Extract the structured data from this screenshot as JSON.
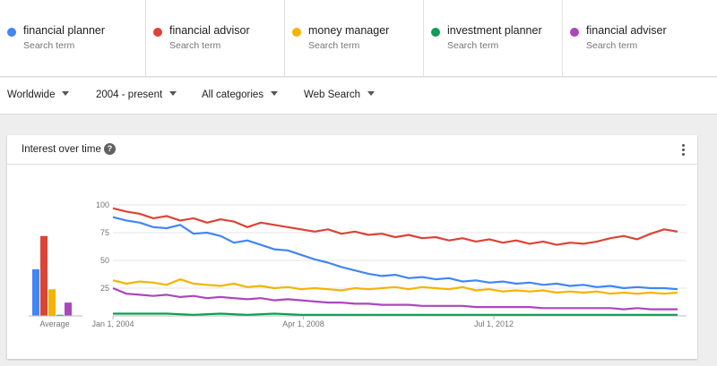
{
  "terms": [
    {
      "name": "financial planner",
      "sub": "Search term",
      "color": "#4285f4"
    },
    {
      "name": "financial advisor",
      "sub": "Search term",
      "color": "#db4437"
    },
    {
      "name": "money manager",
      "sub": "Search term",
      "color": "#f4b400"
    },
    {
      "name": "investment planner",
      "sub": "Search term",
      "color": "#0f9d58"
    },
    {
      "name": "financial adviser",
      "sub": "Search term",
      "color": "#ab47bc"
    }
  ],
  "filters": {
    "region": "Worldwide",
    "time": "2004 - present",
    "category": "All categories",
    "property": "Web Search"
  },
  "card": {
    "title": "Interest over time",
    "help_icon": "?"
  },
  "chart_data": {
    "type": "line",
    "ylim": [
      0,
      100
    ],
    "yticks": [
      "100",
      "75",
      "50",
      "25"
    ],
    "xticks": [
      "Jan 1, 2004",
      "Apr 1, 2008",
      "Jul 1, 2012"
    ],
    "average_label": "Average",
    "averages": [
      {
        "color": "#4285f4",
        "value": 42
      },
      {
        "color": "#db4437",
        "value": 72
      },
      {
        "color": "#f4b400",
        "value": 24
      },
      {
        "color": "#0f9d58",
        "value": 1
      },
      {
        "color": "#ab47bc",
        "value": 12
      }
    ],
    "x_range": [
      "2004-01",
      "2016-10"
    ],
    "series": [
      {
        "color": "#4285f4",
        "values": [
          [
            2004.0,
            89
          ],
          [
            2004.3,
            86
          ],
          [
            2004.6,
            84
          ],
          [
            2004.9,
            80
          ],
          [
            2005.2,
            79
          ],
          [
            2005.5,
            82
          ],
          [
            2005.8,
            74
          ],
          [
            2006.1,
            75
          ],
          [
            2006.4,
            72
          ],
          [
            2006.7,
            66
          ],
          [
            2007.0,
            68
          ],
          [
            2007.3,
            64
          ],
          [
            2007.6,
            60
          ],
          [
            2007.9,
            59
          ],
          [
            2008.2,
            55
          ],
          [
            2008.5,
            51
          ],
          [
            2008.8,
            48
          ],
          [
            2009.1,
            44
          ],
          [
            2009.4,
            41
          ],
          [
            2009.7,
            38
          ],
          [
            2010.0,
            36
          ],
          [
            2010.3,
            37
          ],
          [
            2010.6,
            34
          ],
          [
            2010.9,
            35
          ],
          [
            2011.2,
            33
          ],
          [
            2011.5,
            34
          ],
          [
            2011.8,
            31
          ],
          [
            2012.1,
            32
          ],
          [
            2012.4,
            30
          ],
          [
            2012.7,
            31
          ],
          [
            2013.0,
            29
          ],
          [
            2013.3,
            30
          ],
          [
            2013.6,
            28
          ],
          [
            2013.9,
            29
          ],
          [
            2014.2,
            27
          ],
          [
            2014.5,
            28
          ],
          [
            2014.8,
            26
          ],
          [
            2015.1,
            27
          ],
          [
            2015.4,
            25
          ],
          [
            2015.7,
            26
          ],
          [
            2016.0,
            25
          ],
          [
            2016.3,
            25
          ],
          [
            2016.6,
            24
          ]
        ]
      },
      {
        "color": "#db4437",
        "values": [
          [
            2004.0,
            97
          ],
          [
            2004.3,
            94
          ],
          [
            2004.6,
            92
          ],
          [
            2004.9,
            88
          ],
          [
            2005.2,
            90
          ],
          [
            2005.5,
            86
          ],
          [
            2005.8,
            88
          ],
          [
            2006.1,
            84
          ],
          [
            2006.4,
            87
          ],
          [
            2006.7,
            85
          ],
          [
            2007.0,
            80
          ],
          [
            2007.3,
            84
          ],
          [
            2007.6,
            82
          ],
          [
            2007.9,
            80
          ],
          [
            2008.2,
            78
          ],
          [
            2008.5,
            76
          ],
          [
            2008.8,
            78
          ],
          [
            2009.1,
            74
          ],
          [
            2009.4,
            76
          ],
          [
            2009.7,
            73
          ],
          [
            2010.0,
            74
          ],
          [
            2010.3,
            71
          ],
          [
            2010.6,
            73
          ],
          [
            2010.9,
            70
          ],
          [
            2011.2,
            71
          ],
          [
            2011.5,
            68
          ],
          [
            2011.8,
            70
          ],
          [
            2012.1,
            67
          ],
          [
            2012.4,
            69
          ],
          [
            2012.7,
            66
          ],
          [
            2013.0,
            68
          ],
          [
            2013.3,
            65
          ],
          [
            2013.6,
            67
          ],
          [
            2013.9,
            64
          ],
          [
            2014.2,
            66
          ],
          [
            2014.5,
            65
          ],
          [
            2014.8,
            67
          ],
          [
            2015.1,
            70
          ],
          [
            2015.4,
            72
          ],
          [
            2015.7,
            69
          ],
          [
            2016.0,
            74
          ],
          [
            2016.3,
            78
          ],
          [
            2016.6,
            76
          ]
        ]
      },
      {
        "color": "#f4b400",
        "values": [
          [
            2004.0,
            32
          ],
          [
            2004.3,
            29
          ],
          [
            2004.6,
            31
          ],
          [
            2004.9,
            30
          ],
          [
            2005.2,
            28
          ],
          [
            2005.5,
            33
          ],
          [
            2005.8,
            29
          ],
          [
            2006.1,
            28
          ],
          [
            2006.4,
            27
          ],
          [
            2006.7,
            29
          ],
          [
            2007.0,
            26
          ],
          [
            2007.3,
            27
          ],
          [
            2007.6,
            25
          ],
          [
            2007.9,
            26
          ],
          [
            2008.2,
            24
          ],
          [
            2008.5,
            25
          ],
          [
            2008.8,
            24
          ],
          [
            2009.1,
            23
          ],
          [
            2009.4,
            25
          ],
          [
            2009.7,
            24
          ],
          [
            2010.0,
            25
          ],
          [
            2010.3,
            26
          ],
          [
            2010.6,
            24
          ],
          [
            2010.9,
            26
          ],
          [
            2011.2,
            25
          ],
          [
            2011.5,
            24
          ],
          [
            2011.8,
            26
          ],
          [
            2012.1,
            23
          ],
          [
            2012.4,
            24
          ],
          [
            2012.7,
            22
          ],
          [
            2013.0,
            23
          ],
          [
            2013.3,
            22
          ],
          [
            2013.6,
            23
          ],
          [
            2013.9,
            21
          ],
          [
            2014.2,
            22
          ],
          [
            2014.5,
            21
          ],
          [
            2014.8,
            22
          ],
          [
            2015.1,
            20
          ],
          [
            2015.4,
            21
          ],
          [
            2015.7,
            20
          ],
          [
            2016.0,
            21
          ],
          [
            2016.3,
            20
          ],
          [
            2016.6,
            21
          ]
        ]
      },
      {
        "color": "#0f9d58",
        "values": [
          [
            2004.0,
            2
          ],
          [
            2004.6,
            2
          ],
          [
            2005.2,
            2
          ],
          [
            2005.8,
            1
          ],
          [
            2006.4,
            2
          ],
          [
            2007.0,
            1
          ],
          [
            2007.6,
            2
          ],
          [
            2008.2,
            1
          ],
          [
            2008.8,
            1
          ],
          [
            2009.4,
            1
          ],
          [
            2010.0,
            1
          ],
          [
            2010.6,
            1
          ],
          [
            2011.2,
            1
          ],
          [
            2011.8,
            1
          ],
          [
            2012.4,
            1
          ],
          [
            2013.0,
            1
          ],
          [
            2013.6,
            1
          ],
          [
            2014.2,
            1
          ],
          [
            2014.8,
            1
          ],
          [
            2015.4,
            1
          ],
          [
            2016.0,
            1
          ],
          [
            2016.6,
            1
          ]
        ]
      },
      {
        "color": "#ab47bc",
        "values": [
          [
            2004.0,
            25
          ],
          [
            2004.3,
            20
          ],
          [
            2004.6,
            19
          ],
          [
            2004.9,
            18
          ],
          [
            2005.2,
            19
          ],
          [
            2005.5,
            17
          ],
          [
            2005.8,
            18
          ],
          [
            2006.1,
            16
          ],
          [
            2006.4,
            17
          ],
          [
            2006.7,
            16
          ],
          [
            2007.0,
            15
          ],
          [
            2007.3,
            16
          ],
          [
            2007.6,
            14
          ],
          [
            2007.9,
            15
          ],
          [
            2008.2,
            14
          ],
          [
            2008.5,
            13
          ],
          [
            2008.8,
            12
          ],
          [
            2009.1,
            12
          ],
          [
            2009.4,
            11
          ],
          [
            2009.7,
            11
          ],
          [
            2010.0,
            10
          ],
          [
            2010.3,
            10
          ],
          [
            2010.6,
            10
          ],
          [
            2010.9,
            9
          ],
          [
            2011.2,
            9
          ],
          [
            2011.5,
            9
          ],
          [
            2011.8,
            9
          ],
          [
            2012.1,
            8
          ],
          [
            2012.4,
            8
          ],
          [
            2012.7,
            8
          ],
          [
            2013.0,
            8
          ],
          [
            2013.3,
            8
          ],
          [
            2013.6,
            7
          ],
          [
            2013.9,
            7
          ],
          [
            2014.2,
            7
          ],
          [
            2014.5,
            7
          ],
          [
            2014.8,
            7
          ],
          [
            2015.1,
            7
          ],
          [
            2015.4,
            6
          ],
          [
            2015.7,
            7
          ],
          [
            2016.0,
            6
          ],
          [
            2016.3,
            6
          ],
          [
            2016.6,
            6
          ]
        ]
      }
    ]
  }
}
